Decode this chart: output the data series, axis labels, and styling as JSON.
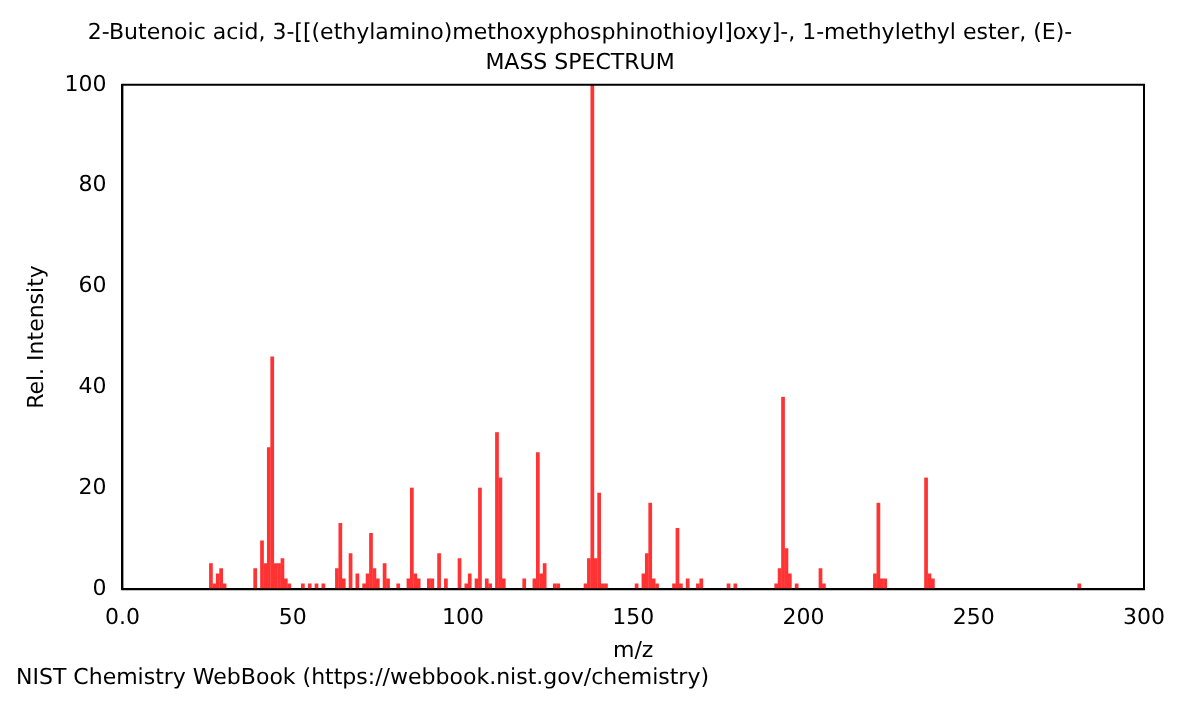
{
  "chart_data": {
    "type": "bar",
    "title": "2-Butenoic acid, 3-[[(ethylamino)methoxyphosphinothioyl]oxy]-, 1-methylethyl ester, (E)-",
    "subtitle": "MASS SPECTRUM",
    "xlabel": "m/z",
    "ylabel": "Rel. Intensity",
    "x": [
      26,
      27,
      28,
      29,
      30,
      39,
      41,
      42,
      43,
      44,
      45,
      46,
      47,
      48,
      49,
      53,
      55,
      57,
      59,
      63,
      64,
      65,
      67,
      69,
      71,
      72,
      73,
      74,
      75,
      77,
      78,
      81,
      84,
      85,
      86,
      87,
      90,
      91,
      93,
      95,
      99,
      101,
      102,
      104,
      105,
      107,
      108,
      110,
      111,
      112,
      118,
      121,
      122,
      123,
      124,
      127,
      128,
      136,
      137,
      138,
      139,
      140,
      141,
      142,
      151,
      153,
      154,
      155,
      156,
      157,
      162,
      163,
      164,
      166,
      169,
      170,
      178,
      180,
      192,
      193,
      194,
      195,
      196,
      198,
      205,
      206,
      221,
      222,
      223,
      224,
      236,
      237,
      238,
      281
    ],
    "series": [
      {
        "color": "#ff3333",
        "values": [
          5,
          1,
          3,
          4,
          1,
          4,
          9.5,
          5,
          28,
          46,
          5,
          5,
          6,
          2,
          1,
          1,
          1,
          1,
          1,
          4,
          13,
          2,
          7,
          3,
          1,
          3,
          11,
          4,
          2,
          5,
          2,
          1,
          2,
          20,
          3,
          2,
          2,
          2,
          7,
          2,
          6,
          1,
          3,
          2,
          20,
          2,
          1,
          31,
          22,
          2,
          2,
          2,
          27,
          3,
          5,
          1,
          1,
          1,
          6,
          100,
          6,
          19,
          1,
          1,
          1,
          3,
          7,
          17,
          2,
          1,
          1,
          12,
          1,
          2,
          1,
          2,
          1,
          1,
          1,
          4,
          38,
          8,
          3,
          1,
          4,
          1,
          3,
          17,
          2,
          2,
          22,
          3,
          2,
          1
        ]
      }
    ],
    "xlim": [
      0,
      300
    ],
    "xticks": [
      {
        "value": 0,
        "label": "0.0"
      },
      50,
      100,
      150,
      200,
      250,
      300
    ],
    "ylim": [
      0,
      100
    ],
    "yticks": [
      0,
      20,
      40,
      60,
      80,
      100
    ],
    "grid": false,
    "legend": false,
    "annotations": [
      "NIST Chemistry WebBook (https://webbook.nist.gov/chemistry)"
    ]
  }
}
